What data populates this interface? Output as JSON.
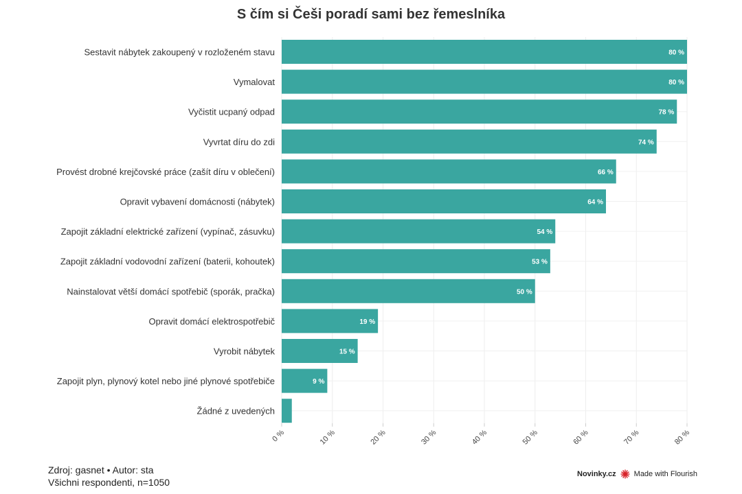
{
  "header": {
    "title": "S čím si Češi poradí sami bez řemeslníka"
  },
  "footer": {
    "source": "Zdroj: gasnet • Autor: sta",
    "note": "Všichni respondenti, n=1050"
  },
  "branding": {
    "publisher": "Novinky.cz",
    "flourish": "Made with Flourish",
    "flourish_icon": "flourish-burst-icon",
    "flourish_color": "#d8232a"
  },
  "chart_data": {
    "type": "bar",
    "orientation": "horizontal",
    "title": "S čím si Češi poradí sami bez řemeslníka",
    "bar_color": "#3aa6a0",
    "grid": true,
    "xlim": [
      0,
      80
    ],
    "x_ticks": [
      0,
      10,
      20,
      30,
      40,
      50,
      60,
      70,
      80
    ],
    "x_tick_labels": [
      "0 %",
      "10 %",
      "20 %",
      "30 %",
      "40 %",
      "50 %",
      "60 %",
      "70 %",
      "80 %"
    ],
    "categories": [
      "Sestavit nábytek zakoupený v rozloženém stavu",
      "Vymalovat",
      "Vyčistit ucpaný odpad",
      "Vyvrtat díru do zdi",
      "Provést drobné krejčovské práce (zašít díru v oblečení)",
      "Opravit vybavení domácnosti (nábytek)",
      "Zapojit základní elektrické zařízení (vypínač, zásuvku)",
      "Zapojit základní vodovodní zařízení (baterii, kohoutek)",
      "Nainstalovat větší domácí spotřebič (sporák, pračka)",
      "Opravit domácí elektrospotřebič",
      "Vyrobit nábytek",
      "Zapojit plyn, plynový kotel nebo jiné plynové spotřebiče",
      "Žádné z uvedených"
    ],
    "values": [
      80,
      80,
      78,
      74,
      66,
      64,
      54,
      53,
      50,
      19,
      15,
      9,
      2
    ],
    "value_labels": [
      "80 %",
      "80 %",
      "78 %",
      "74 %",
      "66 %",
      "64 %",
      "54 %",
      "53 %",
      "50 %",
      "19 %",
      "15 %",
      "9 %",
      ""
    ]
  }
}
